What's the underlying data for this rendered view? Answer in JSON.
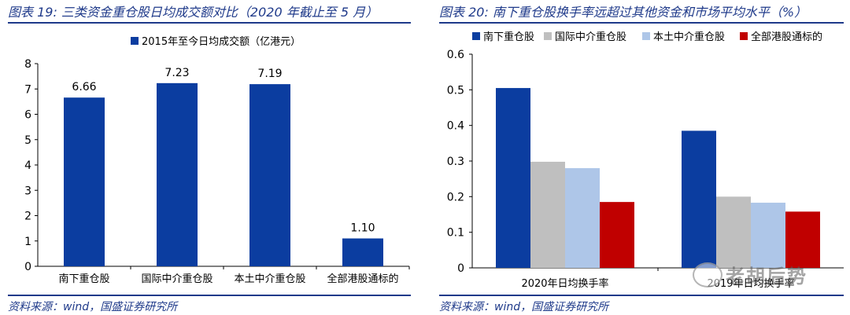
{
  "left_panel": {
    "title": "图表 19: 三类资金重仓股日均成交额对比（2020 年截止至 5 月）",
    "source": "资料来源：wind，国盛证券研究所"
  },
  "right_panel": {
    "title": "图表 20: 南下重仓股换手率远超过其他资金和市场平均水平（%）",
    "source": "资料来源：wind，国盛证券研究所"
  },
  "watermark": {
    "text": "老胡后势",
    "icon": "wechat-icon"
  },
  "chart_data": [
    {
      "type": "bar",
      "title": "",
      "xlabel": "",
      "ylabel": "",
      "categories": [
        "南下重仓股",
        "国际中介重仓股",
        "本土中介重仓股",
        "全部港股通标的"
      ],
      "series": [
        {
          "name": "2015年至今日均成交额（亿港元）",
          "values": [
            6.66,
            7.23,
            7.19,
            1.1
          ],
          "color": "#0b3da0"
        }
      ],
      "data_labels": [
        "6.66",
        "7.23",
        "7.19",
        "1.10"
      ],
      "ylim": [
        0,
        8
      ],
      "yticks": [
        0,
        1,
        2,
        3,
        4,
        5,
        6,
        7,
        8
      ],
      "ytick_labels": [
        "0",
        "1",
        "2",
        "3",
        "4",
        "5",
        "6",
        "7",
        "8"
      ],
      "legend": "top-center",
      "grid": false
    },
    {
      "type": "bar",
      "title": "",
      "xlabel": "",
      "ylabel": "",
      "categories": [
        "2020年日均换手率",
        "2019年日均换手率"
      ],
      "series": [
        {
          "name": "南下重仓股",
          "values": [
            0.505,
            0.385
          ],
          "color": "#0b3da0"
        },
        {
          "name": "国际中介重仓股",
          "values": [
            0.298,
            0.2
          ],
          "color": "#bfbfbf"
        },
        {
          "name": "本土中介重仓股",
          "values": [
            0.28,
            0.183
          ],
          "color": "#aec6e8"
        },
        {
          "name": "全部港股通标的",
          "values": [
            0.185,
            0.158
          ],
          "color": "#c00000"
        }
      ],
      "ylim": [
        0,
        0.6
      ],
      "yticks": [
        0,
        0.1,
        0.2,
        0.3,
        0.4,
        0.5,
        0.6
      ],
      "ytick_labels": [
        "0",
        "0.1",
        "0.2",
        "0.3",
        "0.4",
        "0.5",
        "0.6"
      ],
      "legend": "top",
      "grid": false
    }
  ]
}
